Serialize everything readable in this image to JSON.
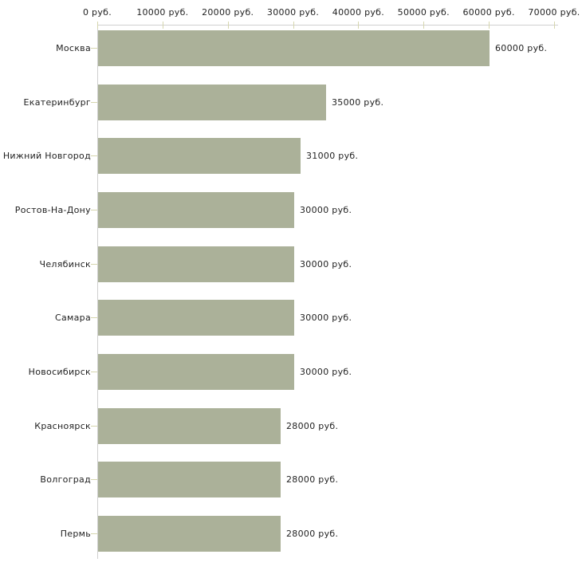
{
  "chart_data": {
    "type": "bar",
    "orientation": "horizontal",
    "title": "",
    "xlabel": "",
    "ylabel": "",
    "unit": "руб.",
    "xlim": [
      0,
      70000
    ],
    "grid": false,
    "legend": false,
    "categories": [
      "Москва",
      "Екатеринбург",
      "Нижний Новгород",
      "Ростов-На-Дону",
      "Челябинск",
      "Самара",
      "Новосибирск",
      "Красноярск",
      "Волгоград",
      "Пермь"
    ],
    "values": [
      60000,
      35000,
      31000,
      30000,
      30000,
      30000,
      30000,
      28000,
      28000,
      28000
    ],
    "value_labels": [
      "60000 руб.",
      "35000 руб.",
      "31000 руб.",
      "30000 руб.",
      "30000 руб.",
      "30000 руб.",
      "30000 руб.",
      "28000 руб.",
      "28000 руб.",
      "28000 руб."
    ],
    "x_tick_values": [
      0,
      10000,
      20000,
      30000,
      40000,
      50000,
      60000,
      70000
    ],
    "x_tick_labels": [
      "0 руб.",
      "10000 руб.",
      "20000 руб.",
      "30000 руб.",
      "40000 руб.",
      "50000 руб.",
      "60000 руб.",
      "70000 руб."
    ],
    "colors": {
      "bar": "#abb199",
      "axis": "#d0d0d0",
      "tick": "#d6d6ae",
      "text": "#222222",
      "background": "#ffffff"
    }
  }
}
